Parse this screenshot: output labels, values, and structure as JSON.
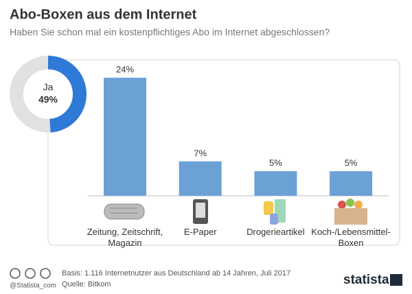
{
  "chart_data": [
    {
      "type": "pie",
      "categories": [
        "Ja",
        null
      ],
      "values": [
        49,
        51
      ],
      "value_labels": [
        "49%",
        null
      ],
      "colors": [
        "#2f7ad6",
        "#e1e1e1"
      ]
    },
    {
      "type": "bar",
      "title": "Abo-Boxen aus dem Internet",
      "subtitle": "Haben Sie schon mal ein kostenpflichtiges Abo im Internet abgeschlossen?",
      "categories": [
        "Zeitung, Zeitschrift, Magazin",
        "E-Paper",
        "Drogerieartikel",
        "Koch-/Lebensmittel-Boxen"
      ],
      "values": [
        24,
        7,
        5,
        5
      ],
      "value_labels": [
        "24%",
        "7%",
        "5%",
        "5%"
      ],
      "color": "#6ca1d6",
      "ylim": [
        0,
        25
      ]
    }
  ],
  "footer": {
    "handle": "@Statista_com",
    "basis": "Basis: 1.116 Internetnutzer aus Deutschland ab 14 Jahren, Juli 2017",
    "source": "Quelle: Bitkom",
    "logo": "statista"
  }
}
